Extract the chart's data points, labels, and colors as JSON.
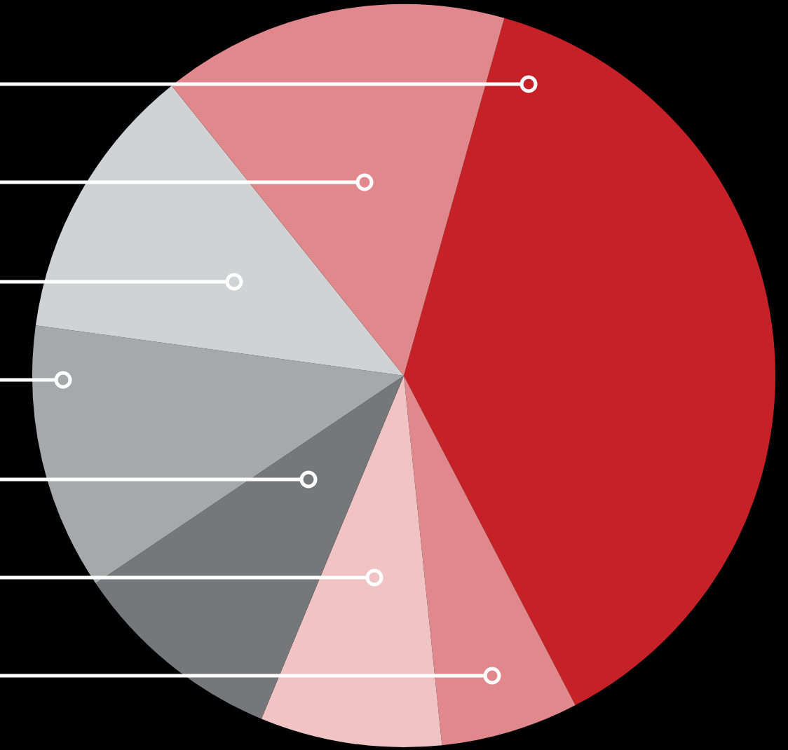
{
  "chart_data": {
    "type": "pie",
    "categories": [
      null,
      null,
      null,
      null,
      null,
      null,
      null
    ],
    "values": [
      38.0,
      6.0,
      7.9,
      9.3,
      11.6,
      12.1,
      15.1
    ],
    "colors": [
      "#c62127",
      "#e0888b",
      "#f0c3c5",
      "#76777a",
      "#a7a8aa",
      "#d1d2d3",
      "#e0888b"
    ],
    "legend": false
  }
}
